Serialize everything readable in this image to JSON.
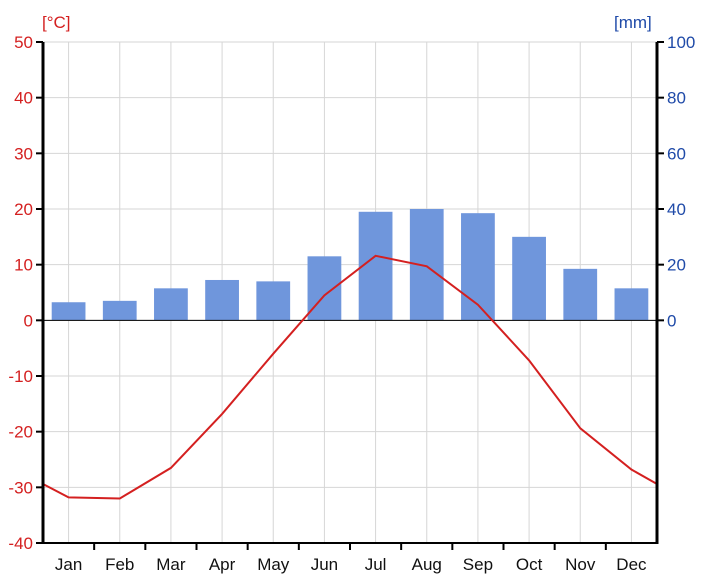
{
  "chart_data": {
    "type": "bar+line",
    "categories": [
      "Jan",
      "Feb",
      "Mar",
      "Apr",
      "May",
      "Jun",
      "Jul",
      "Aug",
      "Sep",
      "Oct",
      "Nov",
      "Dec"
    ],
    "series": [
      {
        "type": "bar",
        "axis": "right",
        "color": "#6f96dc",
        "values": [
          6.5,
          7,
          11.5,
          14.5,
          14,
          23,
          39,
          40,
          38.5,
          30,
          18.5,
          11.5
        ]
      },
      {
        "type": "line",
        "axis": "left",
        "color": "#d42020",
        "values": [
          -31.8,
          -32.0,
          -26.5,
          -16.8,
          -6.0,
          4.5,
          11.6,
          9.7,
          2.8,
          -7.2,
          -19.4,
          -26.8
        ]
      }
    ],
    "line_edge_values": [
      -29.4,
      -29.4
    ],
    "left_axis": {
      "label": "[°C]",
      "range": [
        -40,
        50
      ],
      "ticks": [
        "-40",
        "-30",
        "-20",
        "-10",
        "0",
        "10",
        "20",
        "30",
        "40",
        "50"
      ],
      "color": "#d42020"
    },
    "right_axis": {
      "label": "[mm]",
      "range": [
        -80,
        100
      ],
      "ticks": [
        "0",
        "20",
        "40",
        "60",
        "80",
        "100"
      ],
      "color": "#1f4aa8"
    },
    "grid": true,
    "legend": "none"
  }
}
